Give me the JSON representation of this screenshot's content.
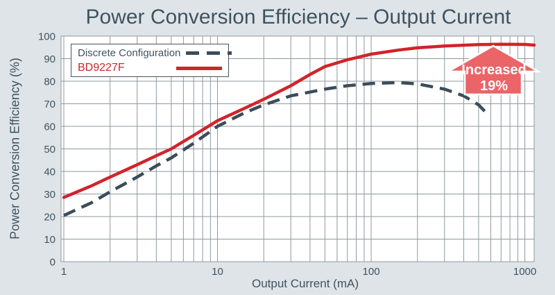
{
  "title": "Power Conversion Efficiency – Output Current",
  "axes": {
    "xlabel": "Output Current (mA)",
    "ylabel": "Power Conversion Efficiency (%)"
  },
  "legend": {
    "items": [
      {
        "label": "Discrete Configuration",
        "style": "dashed"
      },
      {
        "label": "BD9227F",
        "style": "solid"
      }
    ]
  },
  "annotation": {
    "line1": "Increased",
    "line2": "19%"
  },
  "colors": {
    "background": "#dfe4e8",
    "plot_background": "#ffffff",
    "grid": "#8f979d",
    "text": "#3e5360",
    "discrete_line": "#3b4d5a",
    "bd9227f_line": "#d0242c",
    "arrow_fill": "#ea6468",
    "arrow_stroke": "#ffffff",
    "arrow_text": "#ffffff"
  },
  "chart_data": {
    "type": "line",
    "title": "Power Conversion Efficiency – Output Current",
    "xlabel": "Output Current (mA)",
    "ylabel": "Power Conversion Efficiency (%)",
    "x_scale": "log",
    "xlim": [
      1,
      1150
    ],
    "ylim": [
      0,
      100
    ],
    "x_ticks": [
      1,
      10,
      100,
      1000
    ],
    "y_ticks": [
      0,
      10,
      20,
      30,
      40,
      50,
      60,
      70,
      80,
      90,
      100
    ],
    "grid": true,
    "legend_position": "top-left",
    "series": [
      {
        "name": "Discrete Configuration",
        "style": "dashed",
        "color": "#3b4d5a",
        "points": [
          [
            1,
            20.5
          ],
          [
            1.5,
            26
          ],
          [
            2,
            31
          ],
          [
            3,
            37.5
          ],
          [
            4,
            42.5
          ],
          [
            5,
            46
          ],
          [
            7,
            52.5
          ],
          [
            10,
            60
          ],
          [
            15,
            66
          ],
          [
            20,
            69.5
          ],
          [
            30,
            73.5
          ],
          [
            50,
            76.5
          ],
          [
            70,
            78
          ],
          [
            100,
            79
          ],
          [
            150,
            79.4
          ],
          [
            200,
            78.8
          ],
          [
            300,
            76.5
          ],
          [
            400,
            73.5
          ],
          [
            500,
            69.5
          ],
          [
            560,
            66
          ]
        ]
      },
      {
        "name": "BD9227F",
        "style": "solid",
        "color": "#d0242c",
        "points": [
          [
            1,
            28.5
          ],
          [
            1.5,
            33.5
          ],
          [
            2,
            37.5
          ],
          [
            3,
            43
          ],
          [
            4,
            47
          ],
          [
            5,
            50
          ],
          [
            7,
            56
          ],
          [
            10,
            62.5
          ],
          [
            15,
            68
          ],
          [
            20,
            72
          ],
          [
            30,
            78
          ],
          [
            40,
            83
          ],
          [
            50,
            86.5
          ],
          [
            70,
            89.5
          ],
          [
            100,
            92
          ],
          [
            150,
            93.8
          ],
          [
            200,
            94.8
          ],
          [
            300,
            95.6
          ],
          [
            500,
            96.2
          ],
          [
            700,
            96.4
          ],
          [
            1000,
            96.3
          ],
          [
            1150,
            96
          ]
        ]
      }
    ],
    "annotation": {
      "text": "Increased 19%",
      "x": 620,
      "y": 80
    }
  }
}
